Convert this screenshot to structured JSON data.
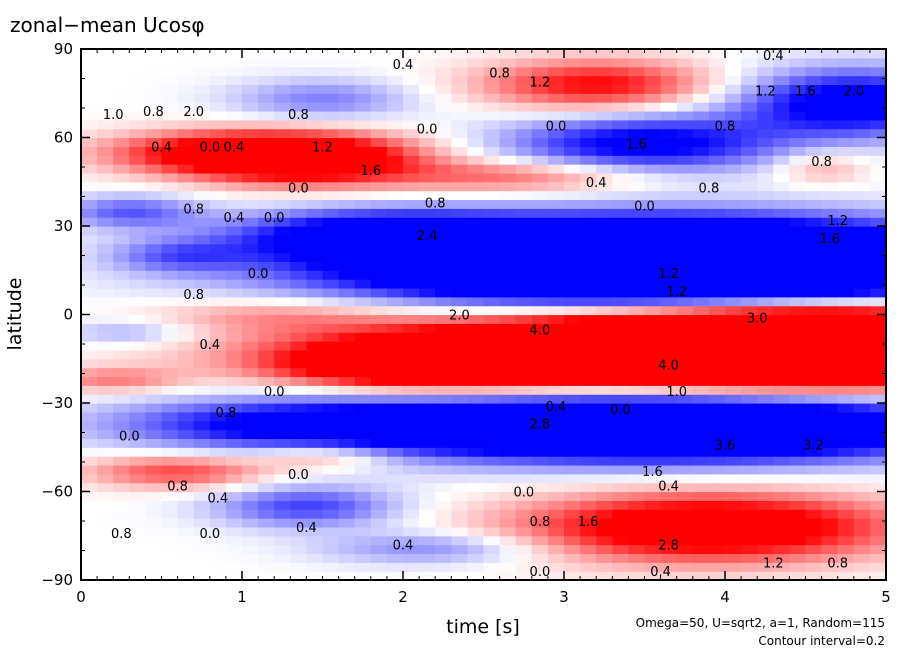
{
  "chart_data": {
    "type": "heatmap",
    "title": "zonal−mean Ucosφ",
    "xlabel": "time [s]",
    "ylabel": "latitude",
    "xlim": [
      0,
      5
    ],
    "ylim": [
      -90,
      90
    ],
    "x_ticks": [
      "0",
      "1",
      "2",
      "3",
      "4",
      "5"
    ],
    "y_ticks": [
      "90",
      "60",
      "30",
      "0",
      "−30",
      "−60",
      "−90"
    ],
    "notes": [
      "Omega=50, U=sqrt2, a=1, Random=115",
      "Contour interval=0.2"
    ],
    "colors": {
      "positive": "#ff0000",
      "negative": "#0000ff",
      "zero": "#ffffff"
    },
    "features": [
      {
        "t": 3.8,
        "lat": -12,
        "value": 4.5,
        "st": 1.4,
        "sl": 8
      },
      {
        "t": 4.6,
        "lat": -10,
        "value": 4.0,
        "st": 0.8,
        "sl": 8
      },
      {
        "t": 2.2,
        "lat": -17,
        "value": 2.6,
        "st": 0.6,
        "sl": 5
      },
      {
        "t": 1.2,
        "lat": 0,
        "value": 0.6,
        "st": 0.5,
        "sl": 4
      },
      {
        "t": 3.7,
        "lat": 12,
        "value": -3.0,
        "st": 1.4,
        "sl": 7
      },
      {
        "t": 3.6,
        "lat": 23,
        "value": -3.2,
        "st": 1.3,
        "sl": 8
      },
      {
        "t": 1.8,
        "lat": 27,
        "value": -1.6,
        "st": 0.6,
        "sl": 6
      },
      {
        "t": 3.6,
        "lat": -38,
        "value": -3.6,
        "st": 1.3,
        "sl": 8
      },
      {
        "t": 1.3,
        "lat": -37,
        "value": -1.4,
        "st": 0.8,
        "sl": 6
      },
      {
        "t": 1.4,
        "lat": 53,
        "value": 2.4,
        "st": 0.5,
        "sl": 6
      },
      {
        "t": 0.8,
        "lat": 55,
        "value": 1.4,
        "st": 0.5,
        "sl": 5
      },
      {
        "t": 2.7,
        "lat": 47,
        "value": 1.0,
        "st": 0.6,
        "sl": 4
      },
      {
        "t": 3.2,
        "lat": 78,
        "value": 1.6,
        "st": 0.5,
        "sl": 6
      },
      {
        "t": 3.5,
        "lat": 58,
        "value": -1.8,
        "st": 0.6,
        "sl": 7
      },
      {
        "t": 4.8,
        "lat": 72,
        "value": -2.0,
        "st": 0.5,
        "sl": 8
      },
      {
        "t": 1.5,
        "lat": 73,
        "value": -0.8,
        "st": 0.4,
        "sl": 5
      },
      {
        "t": 4.6,
        "lat": 50,
        "value": 0.6,
        "st": 0.2,
        "sl": 4
      },
      {
        "t": 3.9,
        "lat": -72,
        "value": 2.4,
        "st": 0.8,
        "sl": 8
      },
      {
        "t": 1.4,
        "lat": -65,
        "value": -1.2,
        "st": 0.4,
        "sl": 5
      },
      {
        "t": 0.6,
        "lat": -53,
        "value": 1.2,
        "st": 0.4,
        "sl": 4
      },
      {
        "t": 1.5,
        "lat": -48,
        "value": 0.8,
        "st": 0.3,
        "sl": 3
      },
      {
        "t": 2.2,
        "lat": -79,
        "value": -0.8,
        "st": 0.5,
        "sl": 4
      },
      {
        "t": 0.3,
        "lat": 35,
        "value": -1.0,
        "st": 0.3,
        "sl": 4
      },
      {
        "t": 0.6,
        "lat": 20,
        "value": -0.8,
        "st": 0.3,
        "sl": 4
      },
      {
        "t": 0.2,
        "lat": -22,
        "value": 0.8,
        "st": 0.3,
        "sl": 3
      },
      {
        "t": 0.3,
        "lat": -6,
        "value": -0.6,
        "st": 0.3,
        "sl": 3
      }
    ],
    "contour_labels": [
      {
        "t": 0.2,
        "lat": 68,
        "text": "1.0"
      },
      {
        "t": 0.45,
        "lat": 69,
        "text": "0.8"
      },
      {
        "t": 0.7,
        "lat": 69,
        "text": "2.0"
      },
      {
        "t": 0.5,
        "lat": 57,
        "text": "0.4"
      },
      {
        "t": 0.8,
        "lat": 57,
        "text": "0.0"
      },
      {
        "t": 0.95,
        "lat": 57,
        "text": "0.4"
      },
      {
        "t": 1.35,
        "lat": 68,
        "text": "0.8"
      },
      {
        "t": 1.5,
        "lat": 57,
        "text": "1.2"
      },
      {
        "t": 1.8,
        "lat": 49,
        "text": "1.6"
      },
      {
        "t": 1.35,
        "lat": 43,
        "text": "0.0"
      },
      {
        "t": 2.15,
        "lat": 63,
        "text": "0.0"
      },
      {
        "t": 2.2,
        "lat": 38,
        "text": "0.8"
      },
      {
        "t": 2.0,
        "lat": 85,
        "text": "0.4"
      },
      {
        "t": 2.6,
        "lat": 82,
        "text": "0.8"
      },
      {
        "t": 2.85,
        "lat": 79,
        "text": "1.2"
      },
      {
        "t": 2.95,
        "lat": 64,
        "text": "0.0"
      },
      {
        "t": 3.45,
        "lat": 58,
        "text": "1.6"
      },
      {
        "t": 3.2,
        "lat": 45,
        "text": "0.4"
      },
      {
        "t": 3.9,
        "lat": 43,
        "text": "0.8"
      },
      {
        "t": 3.5,
        "lat": 37,
        "text": "0.0"
      },
      {
        "t": 4.0,
        "lat": 64,
        "text": "0.8"
      },
      {
        "t": 4.3,
        "lat": 88,
        "text": "0.4"
      },
      {
        "t": 4.25,
        "lat": 76,
        "text": "1.2"
      },
      {
        "t": 4.5,
        "lat": 76,
        "text": "1.6"
      },
      {
        "t": 4.8,
        "lat": 76,
        "text": "2.0"
      },
      {
        "t": 4.6,
        "lat": 52,
        "text": "0.8"
      },
      {
        "t": 4.7,
        "lat": 32,
        "text": "1.2"
      },
      {
        "t": 4.65,
        "lat": 26,
        "text": "1.6"
      },
      {
        "t": 0.7,
        "lat": 36,
        "text": "0.8"
      },
      {
        "t": 0.95,
        "lat": 33,
        "text": "0.4"
      },
      {
        "t": 1.2,
        "lat": 33,
        "text": "0.0"
      },
      {
        "t": 1.1,
        "lat": 14,
        "text": "0.0"
      },
      {
        "t": 0.7,
        "lat": 7,
        "text": "0.8"
      },
      {
        "t": 0.8,
        "lat": -10,
        "text": "0.4"
      },
      {
        "t": 1.2,
        "lat": -26,
        "text": "0.0"
      },
      {
        "t": 2.15,
        "lat": 27,
        "text": "2.4"
      },
      {
        "t": 3.65,
        "lat": 14,
        "text": "1.2"
      },
      {
        "t": 3.7,
        "lat": 8,
        "text": "1.2"
      },
      {
        "t": 2.35,
        "lat": 0,
        "text": "2.0"
      },
      {
        "t": 2.85,
        "lat": -5,
        "text": "4.0"
      },
      {
        "t": 4.2,
        "lat": -1,
        "text": "3.0"
      },
      {
        "t": 3.65,
        "lat": -17,
        "text": "4.0"
      },
      {
        "t": 3.7,
        "lat": -26,
        "text": "1.0"
      },
      {
        "t": 2.95,
        "lat": -31,
        "text": "0.4"
      },
      {
        "t": 3.35,
        "lat": -32,
        "text": "0.0"
      },
      {
        "t": 2.85,
        "lat": -37,
        "text": "2.8"
      },
      {
        "t": 4.0,
        "lat": -44,
        "text": "3.6"
      },
      {
        "t": 4.55,
        "lat": -44,
        "text": "3.2"
      },
      {
        "t": 0.9,
        "lat": -33,
        "text": "0.8"
      },
      {
        "t": 0.3,
        "lat": -41,
        "text": "0.0"
      },
      {
        "t": 1.35,
        "lat": -54,
        "text": "0.0"
      },
      {
        "t": 0.6,
        "lat": -58,
        "text": "0.8"
      },
      {
        "t": 0.85,
        "lat": -62,
        "text": "0.4"
      },
      {
        "t": 1.4,
        "lat": -72,
        "text": "0.4"
      },
      {
        "t": 0.8,
        "lat": -74,
        "text": "0.0"
      },
      {
        "t": 0.25,
        "lat": -74,
        "text": "0.8"
      },
      {
        "t": 2.75,
        "lat": -60,
        "text": "0.0"
      },
      {
        "t": 3.55,
        "lat": -53,
        "text": "1.6"
      },
      {
        "t": 3.65,
        "lat": -58,
        "text": "0.4"
      },
      {
        "t": 2.85,
        "lat": -70,
        "text": "0.8"
      },
      {
        "t": 3.15,
        "lat": -70,
        "text": "1.6"
      },
      {
        "t": 3.65,
        "lat": -78,
        "text": "2.8"
      },
      {
        "t": 2.0,
        "lat": -78,
        "text": "0.4"
      },
      {
        "t": 2.85,
        "lat": -87,
        "text": "0.0"
      },
      {
        "t": 3.6,
        "lat": -87,
        "text": "0.4"
      },
      {
        "t": 4.3,
        "lat": -84,
        "text": "1.2"
      },
      {
        "t": 4.7,
        "lat": -84,
        "text": "0.8"
      }
    ]
  }
}
